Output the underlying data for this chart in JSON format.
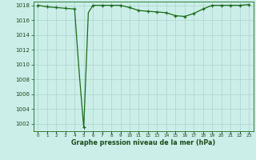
{
  "hours": [
    0,
    1,
    2,
    3,
    4,
    4.5,
    5,
    5.5,
    6,
    7,
    8,
    9,
    10,
    11,
    12,
    13,
    14,
    15,
    16,
    17,
    18,
    19,
    20,
    21,
    22,
    23
  ],
  "pressure": [
    1018.0,
    1017.8,
    1017.7,
    1017.6,
    1017.5,
    1009.0,
    1001.5,
    1017.0,
    1018.0,
    1018.0,
    1018.0,
    1018.0,
    1017.7,
    1017.3,
    1017.2,
    1017.1,
    1017.0,
    1016.6,
    1016.5,
    1016.9,
    1017.5,
    1018.0,
    1018.0,
    1018.0,
    1018.0,
    1018.1
  ],
  "marker_hours": [
    0,
    1,
    2,
    3,
    4,
    5,
    6,
    7,
    8,
    9,
    10,
    11,
    12,
    13,
    14,
    15,
    16,
    17,
    18,
    19,
    20,
    21,
    22,
    23
  ],
  "marker_pressure": [
    1018.0,
    1017.8,
    1017.7,
    1017.6,
    1017.5,
    1001.5,
    1018.0,
    1018.0,
    1018.0,
    1018.0,
    1017.7,
    1017.3,
    1017.2,
    1017.1,
    1017.0,
    1016.6,
    1016.5,
    1016.9,
    1017.5,
    1018.0,
    1018.0,
    1018.0,
    1018.0,
    1018.1
  ],
  "ylim": [
    1001.0,
    1018.5
  ],
  "yticks": [
    1002,
    1004,
    1006,
    1008,
    1010,
    1012,
    1014,
    1016,
    1018
  ],
  "xlim": [
    -0.5,
    23.5
  ],
  "xtick_positions": [
    0,
    1,
    2,
    3,
    4,
    5,
    6,
    7,
    8,
    9,
    10,
    11,
    12,
    13,
    14,
    15,
    16,
    17,
    18,
    19,
    20,
    21,
    22,
    23
  ],
  "xtick_labels": [
    "0",
    "1",
    "2",
    "3",
    "4",
    "5",
    "6",
    "7",
    "8",
    "9",
    "10",
    "11",
    "12",
    "13",
    "14",
    "15",
    "16",
    "17",
    "18",
    "19",
    "20",
    "21",
    "22",
    "23"
  ],
  "xlabel": "Graphe pression niveau de la mer (hPa)",
  "line_color": "#1a6b1a",
  "bg_color": "#cceee8",
  "grid_color": "#aad4cc",
  "label_color": "#1a4a1a"
}
